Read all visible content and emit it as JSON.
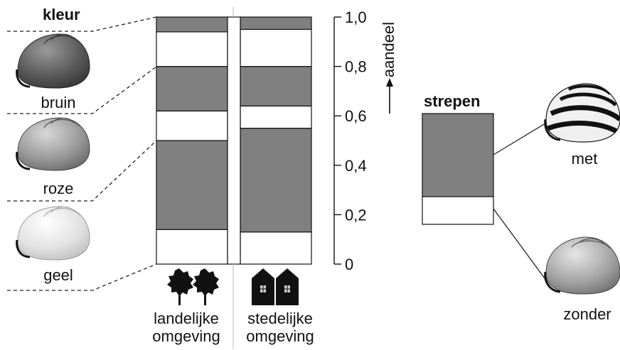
{
  "chart_data": {
    "type": "bar",
    "stacked": true,
    "colors": {
      "brown": "#808080",
      "white": "#ffffff",
      "outline": "#111111"
    },
    "legend_title": "kleur",
    "legend_items": [
      "bruin",
      "roze",
      "geel"
    ],
    "categories": [
      "landelijke omgeving",
      "stedelijke omgeving"
    ],
    "category_lines": [
      [
        "landelijke",
        "omgeving"
      ],
      [
        "stedelijke",
        "omgeving"
      ]
    ],
    "category_icons": [
      "tree-icon",
      "house-icon"
    ],
    "series": [
      {
        "values": [
          0.14,
          0.13
        ]
      },
      {
        "values": [
          0.36,
          0.42
        ]
      },
      {
        "values": [
          0.12,
          0.09
        ]
      },
      {
        "values": [
          0.18,
          0.16
        ]
      },
      {
        "values": [
          0.14,
          0.15
        ]
      },
      {
        "values": [
          0.06,
          0.05
        ]
      }
    ],
    "ylabel": "aandeel",
    "ylim": [
      0,
      1.0
    ],
    "yticks": [
      0,
      0.2,
      0.4,
      0.6,
      0.8,
      1.0
    ],
    "ytick_labels": [
      "0",
      "0,2",
      "0,4",
      "0,6",
      "0,8",
      "1,0"
    ],
    "grid": false,
    "inset": {
      "title": "strepen",
      "items": [
        "met",
        "zonder"
      ],
      "values": {
        "met": 0.75,
        "zonder": 0.25
      }
    }
  }
}
